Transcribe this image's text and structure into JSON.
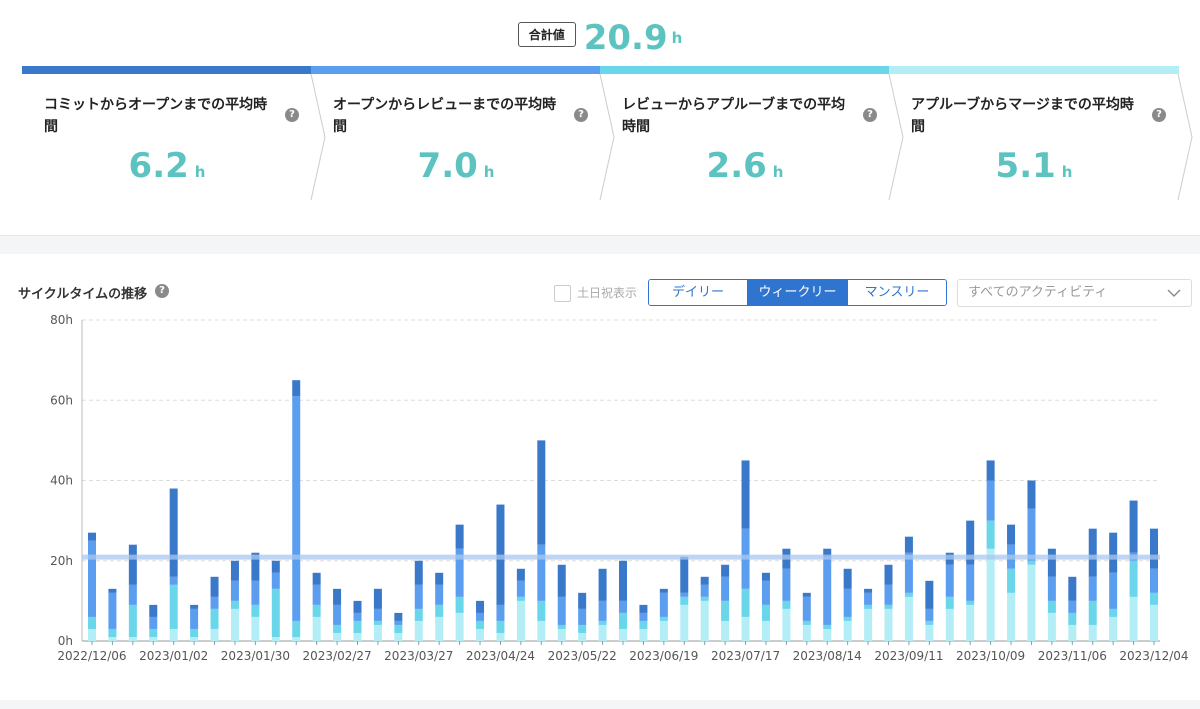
{
  "total": {
    "badge": "合計値",
    "value": "20.9",
    "unit": "h"
  },
  "stages": [
    {
      "title": "コミットからオープンまでの平均時間",
      "value": "6.2",
      "unit": "h",
      "color": "#3a78c9"
    },
    {
      "title": "オープンからレビューまでの平均時間",
      "value": "7.0",
      "unit": "h",
      "color": "#5b9ef0"
    },
    {
      "title": "レビューからアプルーブまでの平均時間",
      "value": "2.6",
      "unit": "h",
      "color": "#6ad6ea"
    },
    {
      "title": "アプルーブからマージまでの平均時間",
      "value": "5.1",
      "unit": "h",
      "color": "#b3eef7"
    }
  ],
  "panel": {
    "title": "サイクルタイムの推移",
    "holiday_label": "土日祝表示",
    "periods": [
      "デイリー",
      "ウィークリー",
      "マンスリー"
    ],
    "active_period": "ウィークリー",
    "activity_select": "すべてのアクティビティ"
  },
  "chart_data": {
    "type": "bar",
    "stacked": true,
    "ylim": [
      0,
      80
    ],
    "yticks": [
      "0h",
      "20h",
      "40h",
      "60h",
      "80h"
    ],
    "xticklabels": [
      "2022/12/06",
      "2023/01/02",
      "2023/01/30",
      "2023/02/27",
      "2023/03/27",
      "2023/04/24",
      "2023/05/22",
      "2023/06/19",
      "2023/07/17",
      "2023/08/14",
      "2023/09/11",
      "2023/10/09",
      "2023/11/06",
      "2023/12/04"
    ],
    "average_line": 20.9,
    "series_colors": [
      "#b3eef7",
      "#6ad6ea",
      "#5b9ef0",
      "#3a78c9"
    ],
    "weeks": [
      [
        3,
        3,
        19,
        2
      ],
      [
        1,
        2,
        9,
        1
      ],
      [
        1,
        8,
        5,
        10
      ],
      [
        1,
        2,
        3,
        3
      ],
      [
        3,
        11,
        2,
        22
      ],
      [
        1,
        2,
        5,
        1
      ],
      [
        3,
        5,
        3,
        5
      ],
      [
        8,
        2,
        5,
        5
      ],
      [
        6,
        3,
        6,
        7
      ],
      [
        1,
        12,
        4,
        3
      ],
      [
        1,
        4,
        56,
        4
      ],
      [
        6,
        3,
        5,
        3
      ],
      [
        2,
        2,
        5,
        4
      ],
      [
        2,
        3,
        2,
        3
      ],
      [
        4,
        1,
        3,
        5
      ],
      [
        2,
        2,
        1,
        2
      ],
      [
        5,
        3,
        6,
        6
      ],
      [
        6,
        3,
        5,
        3
      ],
      [
        7,
        4,
        12,
        6
      ],
      [
        3,
        2,
        2,
        3
      ],
      [
        2,
        3,
        4,
        25
      ],
      [
        10,
        1,
        4,
        3
      ],
      [
        5,
        5,
        14,
        26
      ],
      [
        3,
        1,
        7,
        8
      ],
      [
        2,
        2,
        4,
        4
      ],
      [
        4,
        1,
        5,
        8
      ],
      [
        3,
        4,
        3,
        10
      ],
      [
        3,
        2,
        2,
        2
      ],
      [
        5,
        1,
        6,
        1
      ],
      [
        9,
        2,
        1,
        9
      ],
      [
        10,
        1,
        3,
        2
      ],
      [
        5,
        5,
        6,
        3
      ],
      [
        6,
        7,
        15,
        17
      ],
      [
        5,
        4,
        6,
        2
      ],
      [
        8,
        2,
        8,
        5
      ],
      [
        4,
        1,
        6,
        1
      ],
      [
        3,
        1,
        17,
        2
      ],
      [
        5,
        1,
        7,
        5
      ],
      [
        8,
        1,
        3,
        1
      ],
      [
        8,
        1,
        5,
        5
      ],
      [
        11,
        1,
        10,
        4
      ],
      [
        4,
        1,
        3,
        7
      ],
      [
        8,
        3,
        8,
        3
      ],
      [
        9,
        1,
        9,
        11
      ],
      [
        23,
        7,
        10,
        5
      ],
      [
        12,
        6,
        6,
        5
      ],
      [
        19,
        1,
        13,
        7
      ],
      [
        7,
        3,
        6,
        7
      ],
      [
        4,
        3,
        3,
        6
      ],
      [
        4,
        6,
        6,
        12
      ],
      [
        6,
        2,
        9,
        10
      ],
      [
        11,
        9,
        2,
        13
      ],
      [
        9,
        3,
        6,
        10
      ]
    ]
  }
}
